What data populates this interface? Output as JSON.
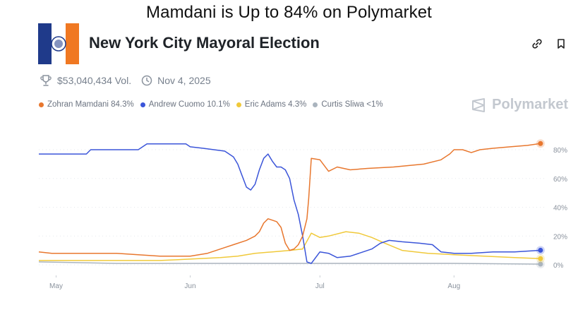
{
  "headline": "Mamdani is Up to 84% on Polymarket",
  "market": {
    "title": "New York City Mayoral Election",
    "volume": "$53,040,434 Vol.",
    "date": "Nov 4, 2025"
  },
  "brand": "Polymarket",
  "icons": {
    "logo": "nyc-flag-icon",
    "volume": "trophy-icon",
    "date": "clock-icon",
    "link": "link-icon",
    "bookmark": "bookmark-icon",
    "brand": "polymarket-logo-icon"
  },
  "legend": [
    {
      "label": "Zohran Mamdani 84.3%",
      "color": "#e8772e"
    },
    {
      "label": "Andrew Cuomo 10.1%",
      "color": "#3b55d9"
    },
    {
      "label": "Eric Adams 4.3%",
      "color": "#f0c93a"
    },
    {
      "label": "Curtis Sliwa <1%",
      "color": "#aab4be"
    }
  ],
  "chart_data": {
    "type": "line",
    "title": "",
    "xlabel": "",
    "ylabel": "",
    "x_ticks": [
      {
        "label": "May",
        "date": "2025-05-01"
      },
      {
        "label": "Jun",
        "date": "2025-06-01"
      },
      {
        "label": "Jul",
        "date": "2025-07-01"
      },
      {
        "label": "Aug",
        "date": "2025-08-01"
      }
    ],
    "y_ticks": [
      {
        "label": "0%",
        "value": 0
      },
      {
        "label": "20%",
        "value": 20
      },
      {
        "label": "40%",
        "value": 40
      },
      {
        "label": "60%",
        "value": 60
      },
      {
        "label": "80%",
        "value": 80
      }
    ],
    "xlim": [
      "2025-04-27",
      "2025-08-22"
    ],
    "ylim": [
      0,
      85
    ],
    "grid": true,
    "legend_position": "top-left",
    "series": [
      {
        "name": "Zohran Mamdani",
        "color": "#e8772e",
        "points": [
          [
            "2025-04-27",
            9
          ],
          [
            "2025-04-30",
            8
          ],
          [
            "2025-05-15",
            8
          ],
          [
            "2025-05-25",
            6
          ],
          [
            "2025-06-01",
            6
          ],
          [
            "2025-06-05",
            8
          ],
          [
            "2025-06-09",
            12
          ],
          [
            "2025-06-11",
            14
          ],
          [
            "2025-06-14",
            17
          ],
          [
            "2025-06-16",
            20
          ],
          [
            "2025-06-17",
            23
          ],
          [
            "2025-06-18",
            29
          ],
          [
            "2025-06-19",
            32
          ],
          [
            "2025-06-20",
            31
          ],
          [
            "2025-06-21",
            30
          ],
          [
            "2025-06-22",
            26
          ],
          [
            "2025-06-23",
            15
          ],
          [
            "2025-06-24",
            10
          ],
          [
            "2025-06-25",
            11
          ],
          [
            "2025-06-26",
            14
          ],
          [
            "2025-06-27",
            20
          ],
          [
            "2025-06-28",
            32
          ],
          [
            "2025-06-28.4",
            46
          ],
          [
            "2025-06-28.8",
            65
          ],
          [
            "2025-06-29",
            74
          ],
          [
            "2025-07-01",
            73
          ],
          [
            "2025-07-03",
            65
          ],
          [
            "2025-07-05",
            68
          ],
          [
            "2025-07-08",
            66
          ],
          [
            "2025-07-12",
            67
          ],
          [
            "2025-07-18",
            68
          ],
          [
            "2025-07-25",
            70
          ],
          [
            "2025-07-29",
            73
          ],
          [
            "2025-07-31",
            77
          ],
          [
            "2025-08-01",
            80
          ],
          [
            "2025-08-03",
            80
          ],
          [
            "2025-08-05",
            78
          ],
          [
            "2025-08-07",
            80
          ],
          [
            "2025-08-10",
            81
          ],
          [
            "2025-08-14",
            82
          ],
          [
            "2025-08-18",
            83
          ],
          [
            "2025-08-21",
            84.3
          ]
        ]
      },
      {
        "name": "Andrew Cuomo",
        "color": "#3b55d9",
        "points": [
          [
            "2025-04-27",
            77
          ],
          [
            "2025-05-08",
            77
          ],
          [
            "2025-05-09",
            80
          ],
          [
            "2025-05-20",
            80
          ],
          [
            "2025-05-22",
            84
          ],
          [
            "2025-05-31",
            84
          ],
          [
            "2025-06-01",
            82
          ],
          [
            "2025-06-04",
            81
          ],
          [
            "2025-06-09",
            79
          ],
          [
            "2025-06-11",
            75
          ],
          [
            "2025-06-12",
            70
          ],
          [
            "2025-06-13",
            62
          ],
          [
            "2025-06-14",
            54
          ],
          [
            "2025-06-15",
            52
          ],
          [
            "2025-06-16",
            56
          ],
          [
            "2025-06-17",
            66
          ],
          [
            "2025-06-18",
            74
          ],
          [
            "2025-06-19",
            77
          ],
          [
            "2025-06-20",
            72
          ],
          [
            "2025-06-21",
            68
          ],
          [
            "2025-06-22",
            68
          ],
          [
            "2025-06-23",
            66
          ],
          [
            "2025-06-24",
            60
          ],
          [
            "2025-06-25",
            45
          ],
          [
            "2025-06-26",
            35
          ],
          [
            "2025-06-27",
            20
          ],
          [
            "2025-06-28",
            2
          ],
          [
            "2025-06-29",
            1
          ],
          [
            "2025-07-01",
            9
          ],
          [
            "2025-07-03",
            8
          ],
          [
            "2025-07-05",
            5
          ],
          [
            "2025-07-08",
            6
          ],
          [
            "2025-07-11",
            9
          ],
          [
            "2025-07-13",
            11
          ],
          [
            "2025-07-15",
            15
          ],
          [
            "2025-07-17",
            17
          ],
          [
            "2025-07-20",
            16
          ],
          [
            "2025-07-24",
            15
          ],
          [
            "2025-07-27",
            14
          ],
          [
            "2025-07-29",
            9
          ],
          [
            "2025-08-01",
            8
          ],
          [
            "2025-08-05",
            8
          ],
          [
            "2025-08-10",
            9
          ],
          [
            "2025-08-15",
            9
          ],
          [
            "2025-08-21",
            10.1
          ]
        ]
      },
      {
        "name": "Eric Adams",
        "color": "#f0c93a",
        "points": [
          [
            "2025-04-27",
            3
          ],
          [
            "2025-05-10",
            3
          ],
          [
            "2025-05-25",
            3
          ],
          [
            "2025-06-01",
            4
          ],
          [
            "2025-06-08",
            5
          ],
          [
            "2025-06-12",
            6
          ],
          [
            "2025-06-16",
            8
          ],
          [
            "2025-06-20",
            9
          ],
          [
            "2025-06-24",
            10
          ],
          [
            "2025-06-27",
            11
          ],
          [
            "2025-06-29",
            22
          ],
          [
            "2025-07-01",
            19
          ],
          [
            "2025-07-03",
            20
          ],
          [
            "2025-07-07",
            23
          ],
          [
            "2025-07-10",
            22
          ],
          [
            "2025-07-13",
            19
          ],
          [
            "2025-07-16",
            15
          ],
          [
            "2025-07-20",
            10
          ],
          [
            "2025-07-26",
            8
          ],
          [
            "2025-08-01",
            7
          ],
          [
            "2025-08-08",
            6
          ],
          [
            "2025-08-15",
            5
          ],
          [
            "2025-08-21",
            4.3
          ]
        ]
      },
      {
        "name": "Curtis Sliwa",
        "color": "#aab4be",
        "points": [
          [
            "2025-04-27",
            2
          ],
          [
            "2025-05-15",
            1
          ],
          [
            "2025-06-01",
            1
          ],
          [
            "2025-06-15",
            1
          ],
          [
            "2025-07-01",
            1
          ],
          [
            "2025-07-15",
            1
          ],
          [
            "2025-08-01",
            1
          ],
          [
            "2025-08-21",
            0.5
          ]
        ]
      }
    ]
  }
}
